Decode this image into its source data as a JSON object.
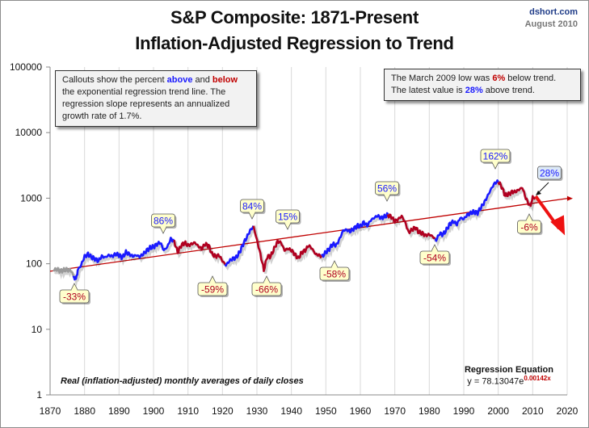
{
  "header": {
    "title_line1": "S&P Composite: 1871-Present",
    "title_line2": "Inflation-Adjusted Regression to Trend",
    "source": "dshort.com",
    "date": "August 2010"
  },
  "notes": {
    "callouts_pre": "Callouts show the percent ",
    "callouts_above": "above",
    "callouts_and": " and ",
    "callouts_below": "below",
    "callouts_post": " the exponential regression trend line. The regression slope represents an annualized growth rate of 1.7%.",
    "march_pre": "The March 2009 low was ",
    "march_pct": "6%",
    "march_post": " below trend.",
    "latest_pre": "The latest value is ",
    "latest_pct": "28%",
    "latest_post": " above trend.",
    "real_note": "Real (inflation-adjusted) monthly averages of daily closes",
    "regression_title": "Regression Equation",
    "regression_eq": "y = 78.13047e",
    "regression_exp": "0.00142x"
  },
  "colors": {
    "above": "#1a1aff",
    "below": "#b00020",
    "trend": "#c00000",
    "early": "#9a9a9a",
    "callout_bg": "#ffffcc",
    "latest_callout_bg": "#dce9f7"
  },
  "chart_data": {
    "type": "line",
    "title": "S&P Composite: 1871-Present — Inflation-Adjusted Regression to Trend",
    "xlabel": "",
    "ylabel": "",
    "y_scale": "log",
    "ylim": [
      1,
      100000
    ],
    "xlim": [
      1870,
      2020
    ],
    "x_ticks": [
      "1870",
      "1880",
      "1890",
      "1900",
      "1910",
      "1920",
      "1930",
      "1940",
      "1950",
      "1960",
      "1970",
      "1980",
      "1990",
      "2000",
      "2010",
      "2020"
    ],
    "y_ticks": [
      "1",
      "10",
      "100",
      "1000",
      "10000",
      "100000"
    ],
    "grid": "vertical",
    "trend": {
      "name": "Exponential regression trend",
      "a": 78.13047,
      "b_per_month": 0.00142,
      "start_year": 1871,
      "end_year": 2020
    },
    "series": [
      {
        "name": "Real S&P Composite",
        "x": [
          1871,
          1872,
          1873,
          1874,
          1875,
          1876,
          1877,
          1877.5,
          1878,
          1879,
          1880,
          1881,
          1882,
          1883,
          1884,
          1885,
          1886,
          1887,
          1888,
          1889,
          1890,
          1891,
          1892,
          1893,
          1894,
          1895,
          1896,
          1897,
          1898,
          1899,
          1900,
          1901,
          1902,
          1903,
          1904,
          1905,
          1906,
          1907,
          1908,
          1909,
          1910,
          1911,
          1912,
          1913,
          1914,
          1915,
          1916,
          1917,
          1918,
          1919,
          1920,
          1921,
          1922,
          1923,
          1924,
          1925,
          1926,
          1927,
          1928,
          1929,
          1930,
          1931,
          1932,
          1933,
          1934,
          1935,
          1936,
          1937,
          1938,
          1939,
          1940,
          1941,
          1942,
          1943,
          1944,
          1945,
          1946,
          1947,
          1948,
          1949,
          1950,
          1951,
          1952,
          1953,
          1954,
          1955,
          1956,
          1957,
          1958,
          1959,
          1960,
          1961,
          1962,
          1963,
          1964,
          1965,
          1966,
          1967,
          1968,
          1969,
          1970,
          1971,
          1972,
          1973,
          1974,
          1975,
          1976,
          1977,
          1978,
          1979,
          1980,
          1981,
          1982,
          1983,
          1984,
          1985,
          1986,
          1987,
          1988,
          1989,
          1990,
          1991,
          1992,
          1993,
          1994,
          1995,
          1996,
          1997,
          1998,
          1999,
          2000,
          2001,
          2002,
          2003,
          2004,
          2005,
          2006,
          2007,
          2008,
          2009,
          2009.2,
          2010,
          2010.6
        ],
        "values": [
          80,
          82,
          78,
          80,
          81,
          80,
          62,
          58,
          80,
          95,
          130,
          140,
          125,
          120,
          110,
          130,
          125,
          135,
          130,
          140,
          135,
          125,
          150,
          140,
          130,
          135,
          128,
          140,
          160,
          175,
          180,
          200,
          210,
          160,
          180,
          240,
          220,
          150,
          190,
          210,
          190,
          200,
          210,
          185,
          170,
          200,
          190,
          140,
          130,
          135,
          110,
          95,
          110,
          120,
          125,
          150,
          200,
          250,
          320,
          370,
          230,
          140,
          80,
          130,
          130,
          170,
          220,
          210,
          160,
          170,
          160,
          140,
          120,
          150,
          160,
          190,
          170,
          140,
          135,
          130,
          150,
          170,
          200,
          190,
          240,
          320,
          330,
          310,
          340,
          380,
          370,
          430,
          380,
          460,
          500,
          540,
          500,
          520,
          560,
          520,
          440,
          480,
          530,
          430,
          300,
          330,
          360,
          300,
          290,
          270,
          280,
          260,
          230,
          290,
          280,
          330,
          410,
          440,
          400,
          500,
          480,
          560,
          590,
          620,
          600,
          720,
          870,
          1100,
          1400,
          1700,
          1800,
          1500,
          1100,
          1150,
          1250,
          1250,
          1350,
          1450,
          1000,
          800,
          750,
          1000,
          1050
        ],
        "segments_color": "blue when above trend (rising phases), red when below/declining phases; grey for 1871-1877"
      }
    ],
    "annotations": [
      {
        "year": 1877,
        "label": "-33%",
        "type": "below"
      },
      {
        "year": 1906,
        "label": "86%",
        "type": "above"
      },
      {
        "year": 1920,
        "label": "-59%",
        "type": "below"
      },
      {
        "year": 1929,
        "label": "84%",
        "type": "above"
      },
      {
        "year": 1932,
        "label": "-66%",
        "type": "below"
      },
      {
        "year": 1937,
        "label": "15%",
        "type": "above"
      },
      {
        "year": 1949,
        "label": "-58%",
        "type": "below"
      },
      {
        "year": 1968,
        "label": "56%",
        "type": "above"
      },
      {
        "year": 1982,
        "label": "-54%",
        "type": "below"
      },
      {
        "year": 2000,
        "label": "162%",
        "type": "above"
      },
      {
        "year": 2009,
        "label": "-6%",
        "type": "below"
      },
      {
        "year": 2010.6,
        "label": "28%",
        "type": "latest"
      }
    ]
  }
}
